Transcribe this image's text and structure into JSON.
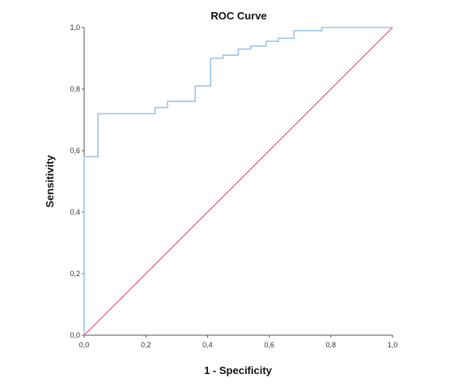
{
  "chart_data": {
    "type": "line",
    "title": "ROC Curve",
    "xlabel": "1 - Specificity",
    "ylabel": "Sensitivity",
    "xlim": [
      0,
      1
    ],
    "ylim": [
      0,
      1
    ],
    "xticks": [
      "0,0",
      "0,2",
      "0,4",
      "0,6",
      "0,8",
      "1,0"
    ],
    "yticks": [
      "0,0",
      "0,2",
      "0,4",
      "0,6",
      "0,8",
      "1,0"
    ],
    "grid": false,
    "legend": "none",
    "series": [
      {
        "style": "step",
        "color": "#9fc5e8",
        "x": [
          0.0,
          0.0,
          0.045,
          0.045,
          0.23,
          0.23,
          0.27,
          0.27,
          0.36,
          0.36,
          0.41,
          0.41,
          0.45,
          0.45,
          0.5,
          0.5,
          0.54,
          0.54,
          0.59,
          0.59,
          0.63,
          0.63,
          0.68,
          0.68,
          0.77,
          0.77,
          1.0
        ],
        "y": [
          0.0,
          0.58,
          0.58,
          0.72,
          0.72,
          0.74,
          0.74,
          0.76,
          0.76,
          0.81,
          0.81,
          0.9,
          0.9,
          0.91,
          0.91,
          0.93,
          0.93,
          0.94,
          0.94,
          0.955,
          0.955,
          0.965,
          0.965,
          0.99,
          0.99,
          1.0,
          1.0
        ]
      },
      {
        "style": "line",
        "color": "#e8708a",
        "x": [
          0.0,
          1.0
        ],
        "y": [
          0.0,
          1.0
        ]
      }
    ]
  }
}
